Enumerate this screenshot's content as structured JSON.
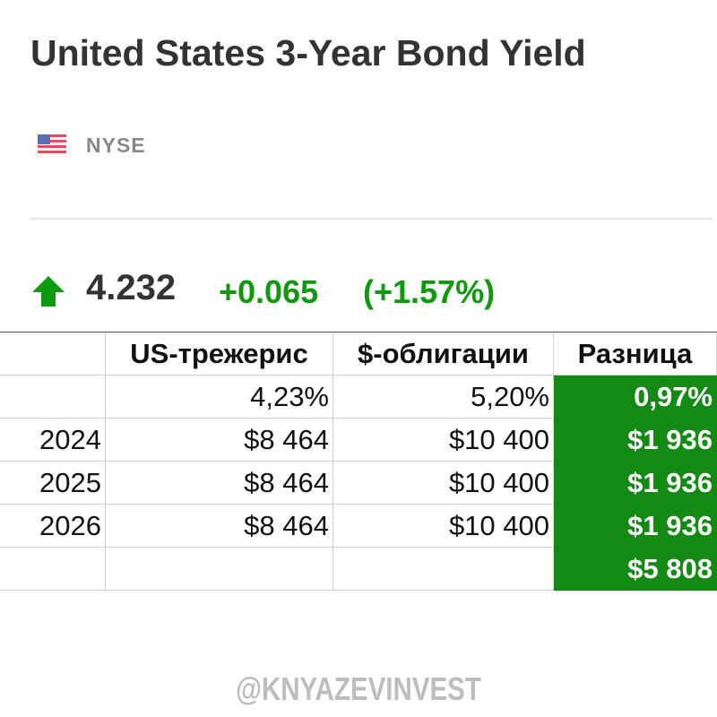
{
  "header": {
    "title": "United States 3-Year Bond Yield",
    "exchange": "NYSE"
  },
  "quote": {
    "price": "4.232",
    "change": "+0.065",
    "percent": "(+1.57%)"
  },
  "table": {
    "header": [
      null,
      "US-трежерис",
      "$-облигации",
      "Разница"
    ],
    "rows": [
      [
        null,
        "4,23%",
        "5,20%",
        "0,97%"
      ],
      [
        "2024",
        "$8 464",
        "$10 400",
        "$1 936"
      ],
      [
        "2025",
        "$8 464",
        "$10 400",
        "$1 936"
      ],
      [
        "2026",
        "$8 464",
        "$10 400",
        "$1 936"
      ],
      [
        null,
        null,
        null,
        "$5 808"
      ]
    ]
  },
  "watermark": "@KNYAZEVINVEST"
}
